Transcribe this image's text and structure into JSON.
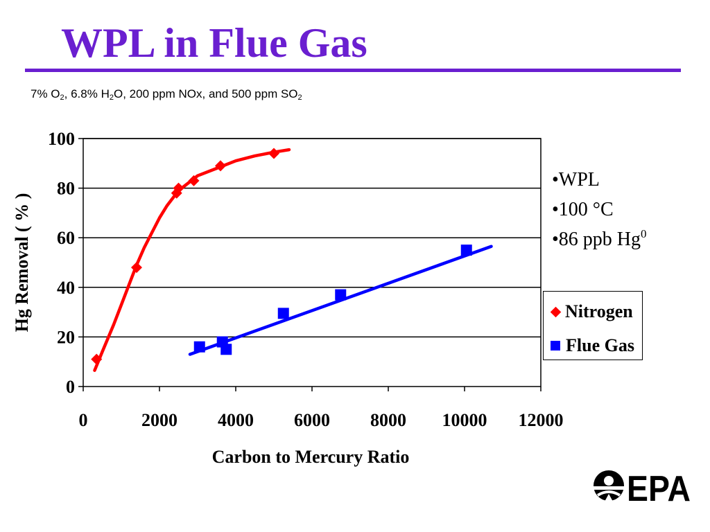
{
  "slide": {
    "title": "WPL in Flue Gas",
    "conditions": {
      "parts": [
        {
          "text": "7% O"
        },
        {
          "sub": "2"
        },
        {
          "text": ", 6.8% H"
        },
        {
          "sub": "2"
        },
        {
          "text": "O, 200 ppm NOx, and 500 ppm SO"
        },
        {
          "sub": "2"
        }
      ]
    },
    "notes": [
      {
        "text": "•WPL"
      },
      {
        "text": "•100 °C"
      },
      {
        "text": "•86 ppb Hg",
        "sup": "0"
      }
    ],
    "logo": {
      "text": "EPA",
      "icon": "epa-logo-icon"
    }
  },
  "chart_data": {
    "type": "scatter",
    "xlabel": "Carbon to Mercury Ratio",
    "ylabel": "Hg Removal ( % )",
    "xlim": [
      0,
      12000
    ],
    "ylim": [
      0,
      100
    ],
    "xticks": [
      0,
      2000,
      4000,
      6000,
      8000,
      10000,
      12000
    ],
    "yticks": [
      0,
      20,
      40,
      60,
      80,
      100
    ],
    "grid": "horizontal",
    "legend_position": "right",
    "series": [
      {
        "name": "Nitrogen",
        "marker": "diamond",
        "color": "#ff0000",
        "points": [
          [
            350,
            11
          ],
          [
            1400,
            48
          ],
          [
            2450,
            78
          ],
          [
            2500,
            80
          ],
          [
            2900,
            83
          ],
          [
            3600,
            89
          ],
          [
            5000,
            94
          ]
        ],
        "trendline": [
          [
            300,
            6.5
          ],
          [
            500,
            14
          ],
          [
            800,
            25
          ],
          [
            1000,
            33
          ],
          [
            1200,
            41
          ],
          [
            1400,
            49
          ],
          [
            1600,
            56
          ],
          [
            1800,
            62
          ],
          [
            2000,
            68
          ],
          [
            2200,
            73
          ],
          [
            2500,
            79
          ],
          [
            3000,
            85
          ],
          [
            3500,
            88
          ],
          [
            4000,
            91
          ],
          [
            4500,
            93
          ],
          [
            5000,
            94.5
          ],
          [
            5400,
            95.5
          ]
        ]
      },
      {
        "name": "Flue Gas",
        "marker": "square",
        "color": "#0000ff",
        "points": [
          [
            3050,
            16
          ],
          [
            3650,
            18
          ],
          [
            3750,
            15
          ],
          [
            5250,
            29.5
          ],
          [
            6750,
            37
          ],
          [
            10050,
            55
          ]
        ],
        "trendline": [
          [
            2800,
            13
          ],
          [
            10700,
            56.5
          ]
        ]
      }
    ]
  }
}
